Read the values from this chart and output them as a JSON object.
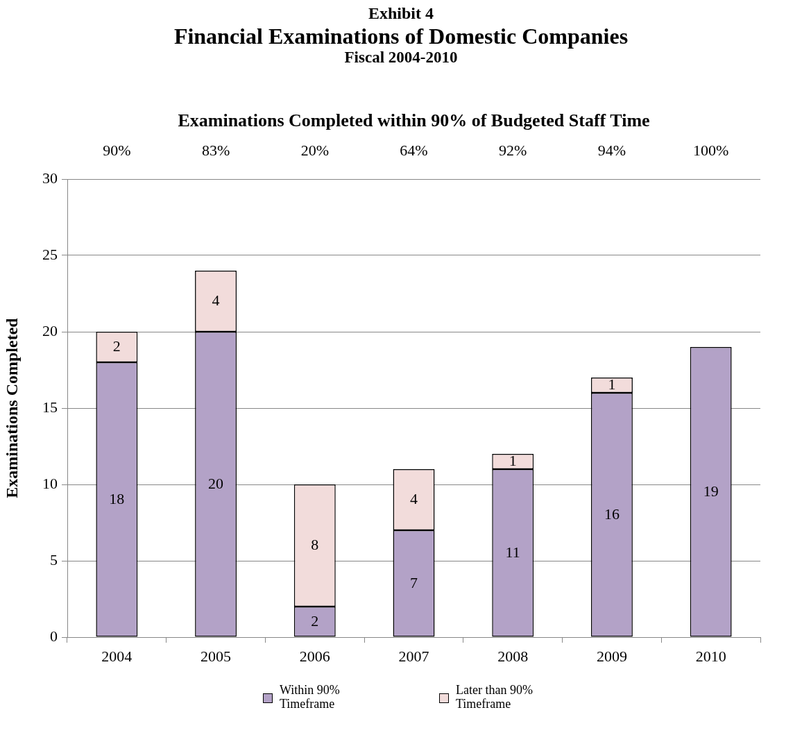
{
  "chart_data": {
    "type": "bar",
    "title": "Financial Examinations of Domestic Companies",
    "subtitle": "Fiscal 2004-2010",
    "ylabel": "Examinations Completed",
    "x2label": "Examinations Completed within 90% of Budgeted Staff Time",
    "annotations": [
      "Exhibit 4",
      "90%",
      "83%",
      "20%",
      "64%",
      "92%",
      "94%",
      "100%"
    ],
    "categories": [
      "2004",
      "2005",
      "2006",
      "2007",
      "2008",
      "2009",
      "2010"
    ],
    "stacked": true,
    "series": [
      {
        "name": "Within 90% Timeframe",
        "color": "#b3a2c7",
        "values": [
          18,
          20,
          2,
          7,
          11,
          16,
          19
        ],
        "value_labels": [
          "18",
          "20",
          "2",
          "7",
          "11",
          "16",
          "19"
        ]
      },
      {
        "name": "Later than 90% Timeframe",
        "color": "#f2dcdb",
        "values": [
          2,
          4,
          8,
          4,
          1,
          1,
          0
        ],
        "value_labels": [
          "2",
          "4",
          "8",
          "4",
          "1",
          "1",
          null
        ]
      }
    ],
    "ylim": [
      0,
      30
    ],
    "yticks": [
      0,
      5,
      10,
      15,
      20,
      25,
      30
    ],
    "grid": "y",
    "legend": "bottom"
  }
}
